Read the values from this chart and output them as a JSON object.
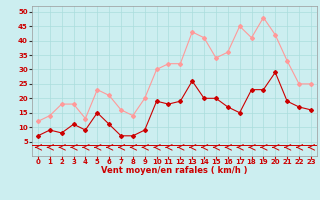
{
  "x": [
    0,
    1,
    2,
    3,
    4,
    5,
    6,
    7,
    8,
    9,
    10,
    11,
    12,
    13,
    14,
    15,
    16,
    17,
    18,
    19,
    20,
    21,
    22,
    23
  ],
  "wind_avg": [
    7,
    9,
    8,
    11,
    9,
    15,
    11,
    7,
    7,
    9,
    19,
    18,
    19,
    26,
    20,
    20,
    17,
    15,
    23,
    23,
    29,
    19,
    17,
    16
  ],
  "wind_gust": [
    12,
    14,
    18,
    18,
    13,
    23,
    21,
    16,
    14,
    20,
    30,
    32,
    32,
    43,
    41,
    34,
    36,
    45,
    41,
    48,
    42,
    33,
    25,
    25
  ],
  "avg_color": "#cc0000",
  "gust_color": "#ff9999",
  "dir_color": "#cc0000",
  "bg_color": "#cceef0",
  "grid_color": "#aadddd",
  "xlabel": "Vent moyen/en rafales ( km/h )",
  "xlabel_color": "#cc0000",
  "yticks": [
    5,
    10,
    15,
    20,
    25,
    30,
    35,
    40,
    45,
    50
  ],
  "xticks": [
    0,
    1,
    2,
    3,
    4,
    5,
    6,
    7,
    8,
    9,
    10,
    11,
    12,
    13,
    14,
    15,
    16,
    17,
    18,
    19,
    20,
    21,
    22,
    23
  ],
  "ylim": [
    0,
    52
  ],
  "xlim": [
    -0.5,
    23.5
  ]
}
